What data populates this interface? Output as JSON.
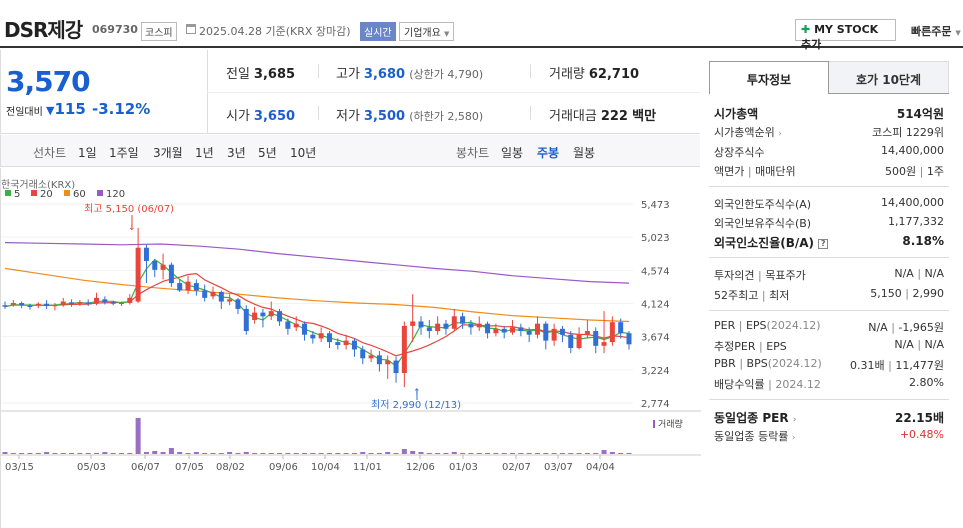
{
  "header": {
    "name": "DSR제강",
    "code": "069730",
    "market": "코스피",
    "date": "2025.04.28 기준(KRX 장마감)",
    "live_badge": "실시간",
    "corp_overview": "기업개요",
    "mystock_label": "MY STOCK 추가",
    "quick_order": "빠른주문"
  },
  "price": {
    "current": "3,570",
    "prev_label": "전일대비",
    "change": "115",
    "change_pct": "-3.12%",
    "prev_close_label": "전일",
    "prev_close": "3,685",
    "high_label": "고가",
    "high": "3,680",
    "upper_limit": "(상한가 4,790)",
    "volume_label": "거래량",
    "volume": "62,710",
    "open_label": "시가",
    "open": "3,650",
    "low_label": "저가",
    "low": "3,500",
    "lower_limit": "(하한가 2,580)",
    "amount_label": "거래대금",
    "amount": "222",
    "amount_unit": "백만"
  },
  "period_bar": {
    "line_label": "선차트",
    "periods": [
      "1일",
      "1주일",
      "3개월",
      "1년",
      "3년",
      "5년",
      "10년"
    ],
    "candle_label": "봉차트",
    "candle_types": [
      "일봉",
      "주봉",
      "월봉"
    ],
    "active_candle": "주봉"
  },
  "chart": {
    "source_label": "한국거래소(KRX)",
    "ma_legend": [
      {
        "label": "5",
        "color": "#3cb043"
      },
      {
        "label": "20",
        "color": "#e8453c"
      },
      {
        "label": "60",
        "color": "#f08c1a"
      },
      {
        "label": "120",
        "color": "#9b59c6"
      }
    ],
    "high_annotation": "최고 5,150 (06/07)",
    "low_annotation": "최저 2,990 (12/13)",
    "volume_label": "거래량",
    "y_ticks": [
      "5,473",
      "5,023",
      "4,574",
      "4,124",
      "3,674",
      "3,224",
      "2,774"
    ],
    "x_ticks": [
      "03/15",
      "05/03",
      "06/07",
      "07/05",
      "08/02",
      "09/06",
      "10/04",
      "11/01",
      "12/06",
      "01/03",
      "02/07",
      "03/07",
      "04/04"
    ],
    "up_color": "#e8453c",
    "down_color": "#2f6fd6"
  },
  "chart_data": {
    "type": "candlestick",
    "interval": "weekly",
    "y_range": [
      2774,
      5473
    ],
    "x": [
      "03/15",
      "05/03",
      "06/07",
      "07/05",
      "08/02",
      "09/06",
      "10/04",
      "11/01",
      "12/06",
      "01/03",
      "02/07",
      "03/07",
      "04/04"
    ],
    "high": {
      "value": 5150,
      "date": "06/07"
    },
    "low": {
      "value": 2990,
      "date": "12/13"
    },
    "moving_averages": [
      "5",
      "20",
      "60",
      "120"
    ]
  },
  "panel": {
    "tabs": [
      "투자정보",
      "호가 10단계"
    ],
    "market_cap_label": "시가총액",
    "market_cap": "514억원",
    "cap_rank_label": "시가총액순위",
    "cap_rank": "코스피 1229위",
    "shares_label": "상장주식수",
    "shares": "14,400,000",
    "par_label": "액면가",
    "unit_label": "매매단위",
    "par_value": "500원",
    "unit_value": "1주",
    "foreign_limit_label": "외국인한도주식수(A)",
    "foreign_limit": "14,400,000",
    "foreign_hold_label": "외국인보유주식수(B)",
    "foreign_hold": "1,177,332",
    "foreign_rate_label": "외국인소진율(B/A)",
    "foreign_rate": "8.18%",
    "opinion_label": "투자의견",
    "target_label": "목표주가",
    "opinion": "N/A",
    "target": "N/A",
    "w52_label": "52주최고",
    "w52_low_label": "최저",
    "w52_high": "5,150",
    "w52_low": "2,990",
    "per_label": "PER",
    "eps_label": "EPS",
    "eps_year": "(2024.12)",
    "per": "N/A",
    "eps": "-1,965원",
    "est_per_label": "추정PER",
    "est_eps_label": "EPS",
    "est_per": "N/A",
    "est_eps": "N/A",
    "pbr_label": "PBR",
    "bps_label": "BPS",
    "bps_year": "(2024.12)",
    "pbr": "0.31배",
    "bps": "11,477원",
    "div_label": "배당수익률",
    "div_year": "2024.12",
    "div": "2.80%",
    "ind_per_label": "동일업종 PER",
    "ind_per": "22.15배",
    "ind_rate_label": "동일업종 등락률",
    "ind_rate": "+0.48%"
  }
}
